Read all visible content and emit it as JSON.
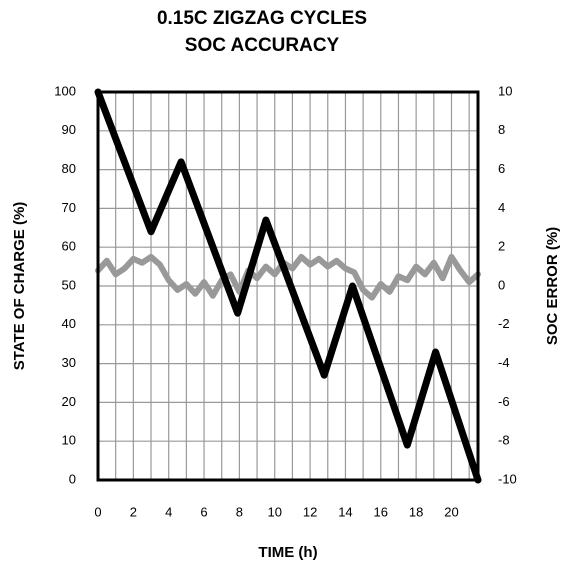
{
  "chart_data": {
    "type": "line",
    "title": [
      "0.15C ZIGZAG CYCLES",
      "SOC ACCURACY"
    ],
    "xlabel": "TIME (h)",
    "ylabel": "STATE OF CHARGE (%)",
    "y2label": "SOC ERROR (%)",
    "xlim": [
      0,
      21.5
    ],
    "xticks": [
      0,
      2,
      4,
      6,
      8,
      10,
      12,
      14,
      16,
      18,
      20
    ],
    "xminor_ticks": [
      1,
      3,
      5,
      7,
      9,
      11,
      13,
      15,
      17,
      19,
      21
    ],
    "ylim": [
      0,
      100
    ],
    "yticks": [
      0,
      10,
      20,
      30,
      40,
      50,
      60,
      70,
      80,
      90,
      100
    ],
    "y2lim": [
      -10,
      10
    ],
    "y2ticks": [
      -10,
      -8,
      -6,
      -4,
      -2,
      0,
      2,
      4,
      6,
      8,
      10
    ],
    "grid": true,
    "series": [
      {
        "color": "#999999",
        "axis": "y2",
        "x": [
          0,
          0.5,
          1,
          1.5,
          2,
          2.5,
          3,
          3.5,
          4,
          4.5,
          5,
          5.5,
          6,
          6.5,
          7,
          7.5,
          8,
          8.5,
          9,
          9.5,
          10,
          10.5,
          11,
          11.5,
          12,
          12.5,
          13,
          13.5,
          14,
          14.5,
          15,
          15.5,
          16,
          16.5,
          17,
          17.5,
          18,
          18.5,
          19,
          19.5,
          20,
          20.5,
          21,
          21.5
        ],
        "values": [
          0.8,
          1.3,
          0.6,
          0.9,
          1.4,
          1.2,
          1.5,
          1.1,
          0.3,
          -0.2,
          0.1,
          -0.4,
          0.2,
          -0.5,
          0.3,
          0.6,
          -0.3,
          0.8,
          0.4,
          1.0,
          0.6,
          1.2,
          0.9,
          1.5,
          1.1,
          1.4,
          1.0,
          1.3,
          0.9,
          0.7,
          -0.2,
          -0.6,
          0.1,
          -0.3,
          0.5,
          0.3,
          1.0,
          0.6,
          1.2,
          0.4,
          1.5,
          0.8,
          0.2,
          0.6
        ]
      },
      {
        "color": "#000000",
        "x": [
          0,
          3.0,
          4.7,
          7.9,
          9.5,
          12.8,
          14.4,
          17.5,
          19.1,
          21.5
        ],
        "values": [
          100,
          64,
          82,
          43,
          67,
          27,
          50,
          9,
          33,
          0
        ]
      }
    ]
  }
}
